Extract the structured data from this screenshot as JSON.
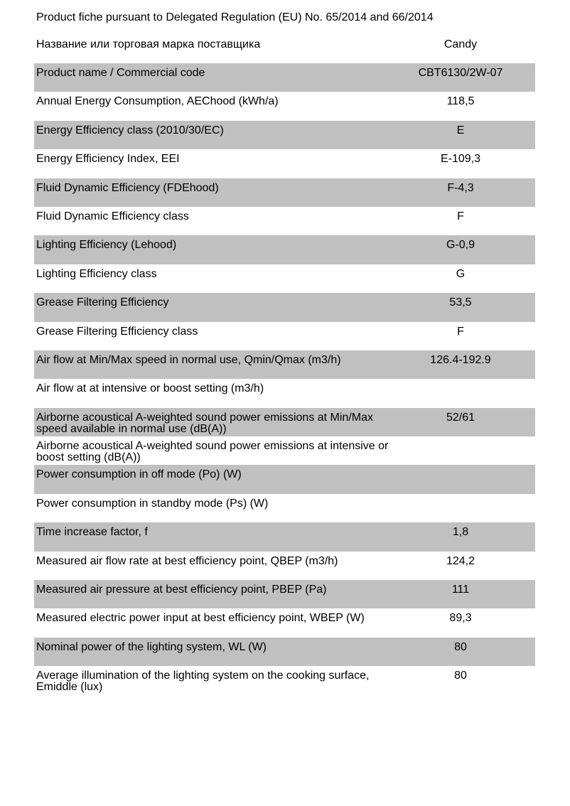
{
  "title": "Product fiche pursuant to Delegated Regulation (EU) No. 65/2014 and 66/2014",
  "supplier": {
    "label": "Название или торговая марка поставщика",
    "value": "Candy"
  },
  "rows": [
    {
      "label": "Product name / Commercial code",
      "value": "CBT6130/2W-07"
    },
    {
      "label": "Annual Energy Consumption, AEChood (kWh/a)",
      "value": "118,5"
    },
    {
      "label": "Energy Efficiency class (2010/30/EC)",
      "value": "E"
    },
    {
      "label": "Energy Efficiency Index, EEI",
      "value": "E-109,3"
    },
    {
      "label": "Fluid Dynamic Efficiency (FDEhood)",
      "value": "F-4,3"
    },
    {
      "label": "Fluid Dynamic Efficiency class",
      "value": "F"
    },
    {
      "label": "Lighting Efficiency (Lehood)",
      "value": "G-0,9"
    },
    {
      "label": "Lighting Efficiency class",
      "value": "G"
    },
    {
      "label": "Grease Filtering Efficiency",
      "value": "53,5"
    },
    {
      "label": "Grease Filtering Efficiency class",
      "value": "F"
    },
    {
      "label": "Air flow at Min/Max speed in normal use, Qmin/Qmax (m3/h)",
      "value": "126.4-192.9"
    },
    {
      "label": "Air flow at at intensive or boost setting (m3/h)",
      "value": ""
    },
    {
      "label": "Airborne acoustical A-weighted sound power emissions at Min/Max speed available in normal use (dB(A))",
      "value": "52/61"
    },
    {
      "label": "Airborne acoustical A-weighted sound power emissions at intensive or boost setting (dB(A))",
      "value": ""
    },
    {
      "label": "Power consumption in off mode (Po) (W)",
      "value": ""
    },
    {
      "label": "Power consumption in standby mode (Ps) (W)",
      "value": ""
    },
    {
      "label": "Time increase factor, f",
      "value": "1,8"
    },
    {
      "label": "Measured air flow rate at best efficiency point, QBEP (m3/h)",
      "value": "124,2"
    },
    {
      "label": "Measured air pressure at best efficiency point,  PBEP (Pa)",
      "value": "111"
    },
    {
      "label": "Measured electric power input at best efficiency point, WBEP (W)",
      "value": "89,3"
    },
    {
      "label": "Nominal power of the lighting system, WL (W)",
      "value": "80"
    },
    {
      "label": "Average illumination of the lighting system on the cooking surface, Emiddle (lux)",
      "value": "80"
    }
  ]
}
